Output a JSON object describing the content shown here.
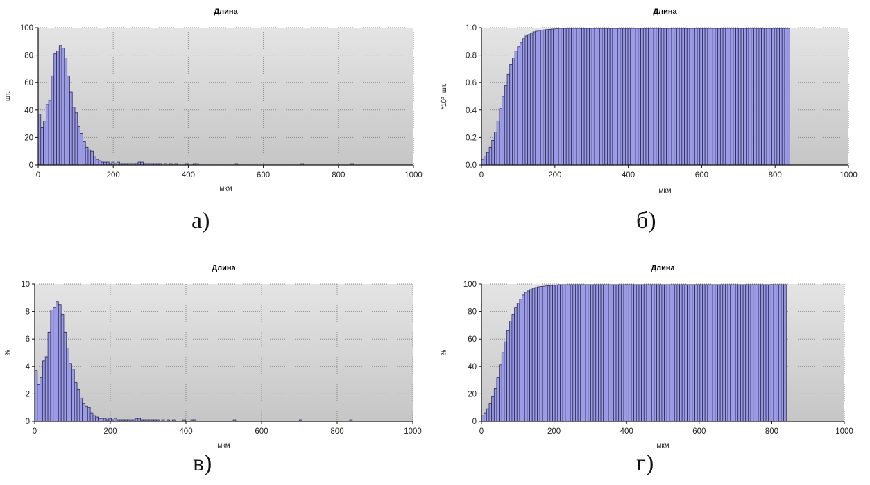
{
  "chart_data": [
    {
      "id": "a",
      "type": "bar",
      "title": "Длина",
      "xlabel": "мкм",
      "ylabel": "шт.",
      "xlim": [
        0,
        1000
      ],
      "ylim": [
        0,
        100
      ],
      "xticks": [
        "0",
        "200",
        "400",
        "600",
        "800",
        "1000"
      ],
      "yticks": [
        "0",
        "20",
        "40",
        "60",
        "80",
        "100"
      ],
      "bin_width": 7,
      "x": [
        0,
        7,
        14,
        21,
        28,
        35,
        42,
        49,
        56,
        63,
        70,
        77,
        84,
        91,
        98,
        105,
        112,
        119,
        126,
        133,
        140,
        147,
        154,
        161,
        168,
        175,
        182,
        189,
        196,
        203,
        210,
        217,
        224,
        231,
        238,
        245,
        252,
        259,
        266,
        273,
        280,
        287,
        294,
        301,
        308,
        315,
        322,
        336,
        350,
        364,
        392,
        413,
        420,
        525,
        700,
        833
      ],
      "values": [
        37,
        27,
        32,
        44,
        47,
        65,
        81,
        83,
        87,
        85,
        78,
        65,
        53,
        42,
        38,
        28,
        23,
        17,
        13,
        11,
        10,
        6,
        4,
        3,
        2,
        2,
        2,
        1,
        2,
        1,
        2,
        1,
        1,
        1,
        1,
        1,
        1,
        1,
        2,
        2,
        1,
        1,
        1,
        1,
        1,
        1,
        1,
        1,
        1,
        1,
        1,
        1,
        1,
        1,
        1,
        1
      ],
      "grid": true,
      "caption": "а)"
    },
    {
      "id": "b",
      "type": "bar",
      "title": "Длина",
      "xlabel": "мкм",
      "ylabel": "*10³, шт.",
      "xlim": [
        0,
        1000
      ],
      "ylim": [
        0,
        1.0
      ],
      "xticks": [
        "0",
        "200",
        "400",
        "600",
        "800",
        "1000"
      ],
      "yticks": [
        "0.0",
        "0.2",
        "0.4",
        "0.6",
        "0.8",
        "1.0"
      ],
      "bin_width": 7,
      "x_end": 840,
      "values": [
        0.04,
        0.06,
        0.09,
        0.13,
        0.18,
        0.24,
        0.32,
        0.41,
        0.5,
        0.58,
        0.66,
        0.73,
        0.78,
        0.83,
        0.86,
        0.89,
        0.92,
        0.94,
        0.95,
        0.96,
        0.97,
        0.975,
        0.98,
        0.982,
        0.984,
        0.986,
        0.988,
        0.99,
        0.991,
        0.992
      ],
      "plateau": 0.995,
      "grid": true,
      "caption": "б)"
    },
    {
      "id": "v",
      "type": "bar",
      "title": "Длина",
      "xlabel": "мкм",
      "ylabel": "%",
      "xlim": [
        0,
        1000
      ],
      "ylim": [
        0,
        10
      ],
      "xticks": [
        "0",
        "200",
        "400",
        "600",
        "800",
        "1000"
      ],
      "yticks": [
        "0",
        "2",
        "4",
        "6",
        "8",
        "10"
      ],
      "bin_width": 7,
      "x": [
        0,
        7,
        14,
        21,
        28,
        35,
        42,
        49,
        56,
        63,
        70,
        77,
        84,
        91,
        98,
        105,
        112,
        119,
        126,
        133,
        140,
        147,
        154,
        161,
        168,
        175,
        182,
        189,
        196,
        203,
        210,
        217,
        224,
        231,
        238,
        245,
        252,
        259,
        266,
        273,
        280,
        287,
        294,
        301,
        308,
        315,
        322,
        336,
        350,
        364,
        392,
        413,
        420,
        525,
        700,
        833
      ],
      "values": [
        3.7,
        2.7,
        3.2,
        4.4,
        4.7,
        6.5,
        8.1,
        8.3,
        8.7,
        8.5,
        7.8,
        6.5,
        5.3,
        4.2,
        3.8,
        2.8,
        2.3,
        1.7,
        1.3,
        1.1,
        1.0,
        0.6,
        0.4,
        0.3,
        0.2,
        0.2,
        0.2,
        0.1,
        0.2,
        0.1,
        0.2,
        0.1,
        0.1,
        0.1,
        0.1,
        0.1,
        0.1,
        0.1,
        0.2,
        0.2,
        0.1,
        0.1,
        0.1,
        0.1,
        0.1,
        0.1,
        0.1,
        0.1,
        0.1,
        0.1,
        0.1,
        0.1,
        0.1,
        0.1,
        0.1,
        0.1
      ],
      "grid": true,
      "caption": "в)"
    },
    {
      "id": "g",
      "type": "bar",
      "title": "Длина",
      "xlabel": "мкм",
      "ylabel": "%",
      "xlim": [
        0,
        1000
      ],
      "ylim": [
        0,
        100
      ],
      "xticks": [
        "0",
        "200",
        "400",
        "600",
        "800",
        "1000"
      ],
      "yticks": [
        "0",
        "20",
        "40",
        "60",
        "80",
        "100"
      ],
      "bin_width": 7,
      "x_end": 840,
      "values": [
        4,
        6,
        9,
        13,
        18,
        24,
        32,
        41,
        50,
        58,
        66,
        73,
        78,
        83,
        86,
        89,
        92,
        94,
        95,
        96,
        97,
        97.5,
        98,
        98.2,
        98.4,
        98.6,
        98.8,
        99,
        99.1,
        99.2
      ],
      "plateau": 99.5,
      "grid": true,
      "caption": "г)"
    }
  ],
  "colors": {
    "bar_fill": "#9c9ce6",
    "bar_stroke": "#2a2a55",
    "plot_bg_top": "#e4e4e4",
    "plot_bg_bottom": "#c6c6c6",
    "grid": "#8a8a8a"
  }
}
